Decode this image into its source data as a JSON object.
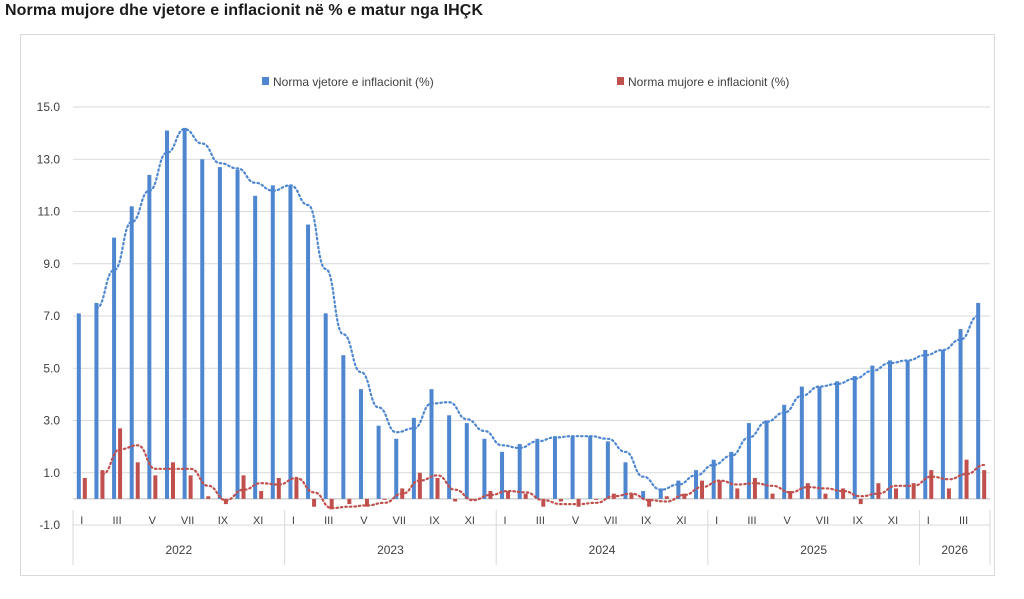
{
  "chart_data": {
    "type": "bar",
    "title": "Norma mujore dhe vjetore e inflacionit në % e matur nga IHÇK",
    "ylim": [
      -1.0,
      15.0
    ],
    "yticks": [
      "15.0",
      "13.0",
      "11.0",
      "9.0",
      "7.0",
      "5.0",
      "3.0",
      "1.0",
      "-1.0"
    ],
    "ytick_values": [
      15,
      13,
      11,
      9,
      7,
      5,
      3,
      1,
      -1
    ],
    "grid": true,
    "legend_position": "top",
    "month_labels": [
      "I",
      "",
      "III",
      "",
      "V",
      "",
      "VII",
      "",
      "IX",
      "",
      "XI",
      ""
    ],
    "years": [
      {
        "label": "2022",
        "months": 12
      },
      {
        "label": "2023",
        "months": 12
      },
      {
        "label": "2024",
        "months": 12
      },
      {
        "label": "2025",
        "months": 12
      },
      {
        "label": "2026",
        "months": 4
      }
    ],
    "series": [
      {
        "name": "Norma vjetore e inflacionit (%)",
        "color": "#4f86d0",
        "trendline": "moving-average",
        "values": [
          7.1,
          7.5,
          10.0,
          11.2,
          12.4,
          14.1,
          14.2,
          13.0,
          12.7,
          12.6,
          11.6,
          12.0,
          12.0,
          10.5,
          7.1,
          5.5,
          4.2,
          2.8,
          2.3,
          3.1,
          4.2,
          3.2,
          2.9,
          2.3,
          1.8,
          2.1,
          2.3,
          2.4,
          2.4,
          2.4,
          2.2,
          1.4,
          0.3,
          0.4,
          0.7,
          1.1,
          1.5,
          1.8,
          2.9,
          3.0,
          3.6,
          4.3,
          4.3,
          4.5,
          4.7,
          5.1,
          5.3,
          5.3,
          5.7,
          5.7,
          6.5,
          7.5
        ]
      },
      {
        "name": "Norma mujore e inflacionit (%)",
        "color": "#c0504d",
        "trendline": "moving-average",
        "values": [
          0.8,
          1.1,
          2.7,
          1.4,
          0.9,
          1.4,
          0.9,
          0.1,
          -0.2,
          0.9,
          0.3,
          0.8,
          0.8,
          -0.3,
          -0.4,
          -0.2,
          -0.3,
          0.0,
          0.4,
          1.0,
          0.8,
          -0.1,
          0.0,
          0.3,
          0.3,
          0.2,
          -0.3,
          -0.1,
          -0.3,
          0.0,
          0.2,
          0.2,
          -0.3,
          0.1,
          0.2,
          0.7,
          0.7,
          0.4,
          0.8,
          0.2,
          0.3,
          0.6,
          0.2,
          0.4,
          -0.2,
          0.6,
          0.4,
          0.6,
          1.1,
          0.4,
          1.5,
          1.1
        ]
      }
    ]
  }
}
